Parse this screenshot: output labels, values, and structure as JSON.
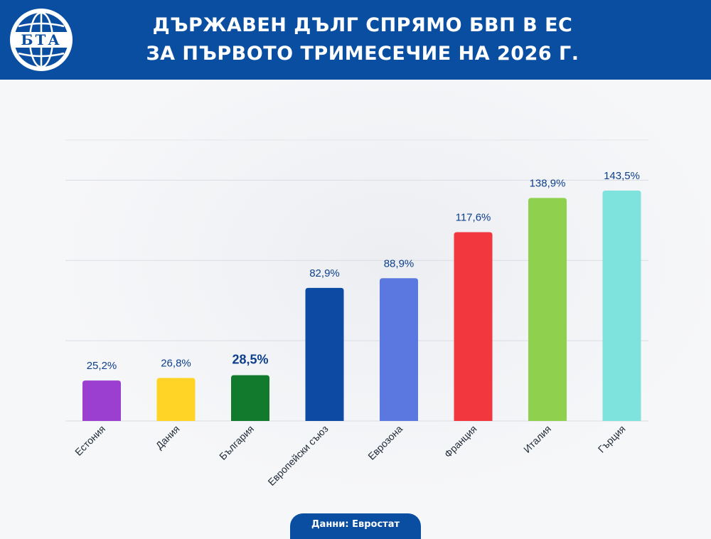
{
  "header": {
    "logo_text": "БТА",
    "title_line1": "ДЪРЖАВЕН ДЪЛГ СПРЯМО БВП В ЕС",
    "title_line2": "ЗА ПЪРВОТО ТРИМЕСЕЧИЕ НА 2026 Г."
  },
  "source": "Данни: Евростат",
  "chart_data": {
    "type": "bar",
    "title": "ДЪРЖАВЕН ДЪЛГ СПРЯМО БВП В ЕС ЗА ПЪРВОТО ТРИМЕСЕЧИЕ НА 2026 Г.",
    "categories": [
      "Естония",
      "Дания",
      "България",
      "Европейски съюз",
      "Еврозона",
      "Франция",
      "Италия",
      "Гърция"
    ],
    "values": [
      25.2,
      26.8,
      28.5,
      82.9,
      88.9,
      117.6,
      138.9,
      143.5
    ],
    "value_labels": [
      "25,2%",
      "26,8%",
      "28,5%",
      "82,9%",
      "88,9%",
      "117,6%",
      "138,9%",
      "143,5%"
    ],
    "colors": [
      "#9b3fd0",
      "#ffd426",
      "#127a2c",
      "#0d4aa3",
      "#5a78e0",
      "#f2383e",
      "#8fd14f",
      "#7ee2dd"
    ],
    "highlight_index": 2,
    "ylim": [
      0,
      175
    ],
    "grid": true,
    "xlabel": "",
    "ylabel": ""
  }
}
